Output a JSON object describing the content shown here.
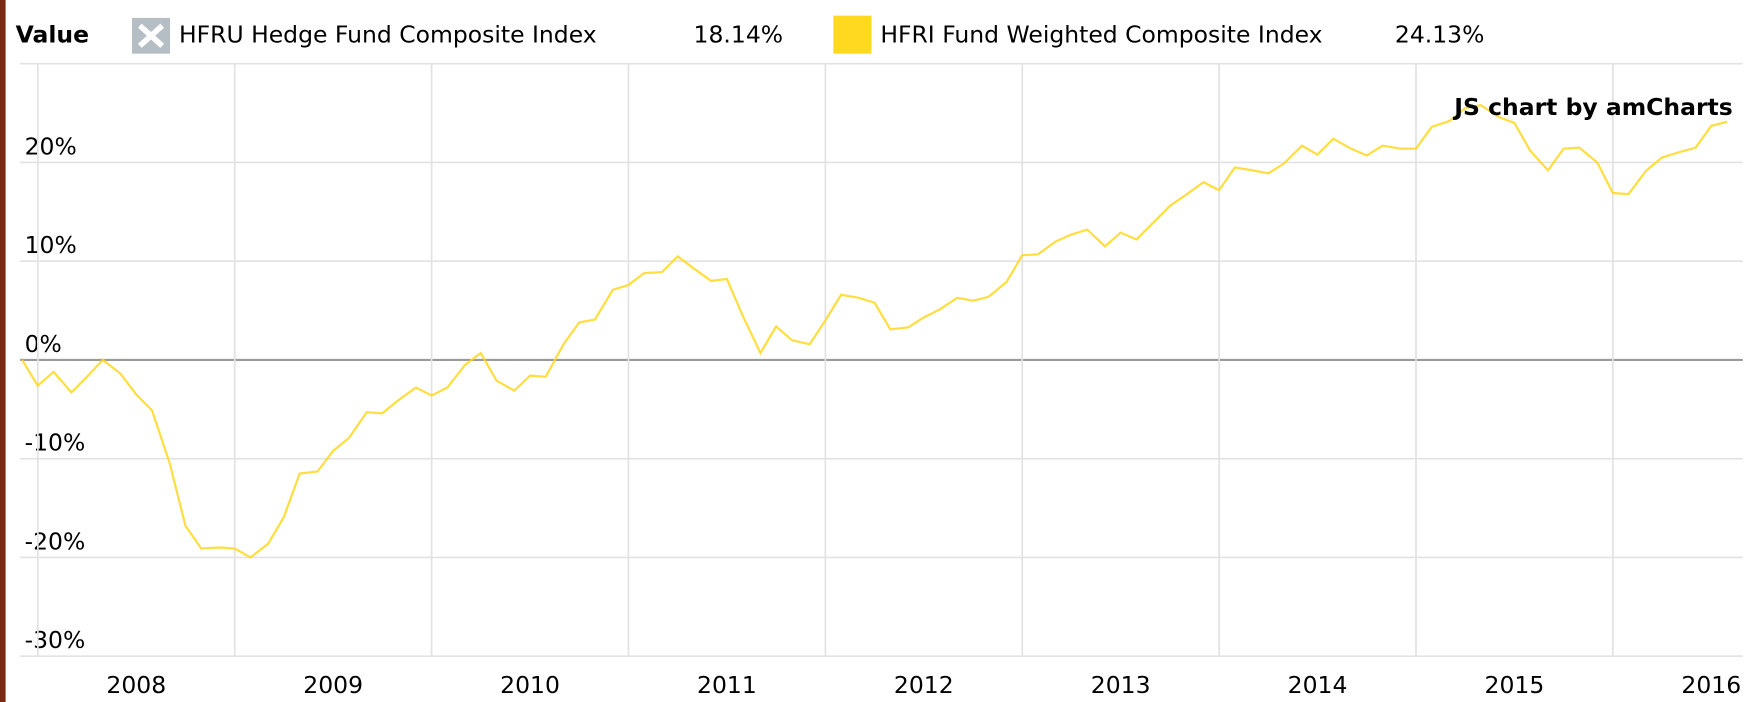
{
  "chart_data": {
    "type": "line",
    "legend_title": "Value",
    "credit": "JS chart by amCharts",
    "grid": true,
    "legend": "top-left",
    "series": [
      {
        "name": "HFRU Hedge Fund Composite Index",
        "hidden": true,
        "color": "#b4bec4",
        "legend_value": {
          "value": 18.14,
          "label": "18.14%"
        }
      },
      {
        "name": "HFRI Fund Weighted Composite Index",
        "color": "#ffd820",
        "legend_value": {
          "value": 24.13,
          "label": "24.13%"
        },
        "values": [
          0,
          -2.6,
          -1.2,
          -3.3,
          -1.7,
          0,
          -1.4,
          -3.5,
          -5.1,
          -10.5,
          -16.8,
          -19.1,
          -19.0,
          -19.1,
          -20.0,
          -18.6,
          -15.9,
          -11.5,
          -11.3,
          -9.2,
          -7.9,
          -5.3,
          -5.4,
          -4.1,
          -2.8,
          -3.6,
          -2.8,
          -0.5,
          0.7,
          -2.1,
          -3.1,
          -1.6,
          -1.7,
          1.6,
          3.8,
          4.1,
          7.1,
          7.6,
          8.8,
          8.9,
          10.5,
          9.3,
          8.0,
          8.2,
          4.5,
          0.7,
          3.4,
          2.0,
          1.6,
          4.0,
          6.6,
          6.3,
          5.8,
          3.1,
          3.3,
          4.3,
          5.1,
          6.3,
          6.0,
          6.4,
          7.9,
          10.6,
          10.7,
          12.0,
          12.7,
          13.2,
          11.5,
          12.9,
          12.2,
          14.0,
          15.6,
          16.7,
          18.0,
          17.2,
          19.5,
          19.2,
          18.9,
          19.9,
          21.7,
          20.8,
          22.4,
          21.4,
          20.7,
          21.7,
          21.4,
          21.4,
          23.6,
          24.2,
          25.5,
          25.8,
          24.6,
          24.0,
          21.2,
          19.2,
          21.4,
          21.5,
          20.0,
          16.9,
          16.8,
          19.2,
          20.5,
          21.0,
          21.5,
          23.7,
          24.13
        ]
      }
    ],
    "x": [
      2007.92,
      2008.0,
      2008.08,
      2008.17,
      2008.25,
      2008.33,
      2008.42,
      2008.5,
      2008.58,
      2008.67,
      2008.75,
      2008.83,
      2008.92,
      2009.0,
      2009.08,
      2009.17,
      2009.25,
      2009.33,
      2009.42,
      2009.5,
      2009.58,
      2009.67,
      2009.75,
      2009.83,
      2009.92,
      2010.0,
      2010.08,
      2010.17,
      2010.25,
      2010.33,
      2010.42,
      2010.5,
      2010.58,
      2010.67,
      2010.75,
      2010.83,
      2010.92,
      2011.0,
      2011.08,
      2011.17,
      2011.25,
      2011.33,
      2011.42,
      2011.5,
      2011.58,
      2011.67,
      2011.75,
      2011.83,
      2011.92,
      2012.0,
      2012.08,
      2012.17,
      2012.25,
      2012.33,
      2012.42,
      2012.5,
      2012.58,
      2012.67,
      2012.75,
      2012.83,
      2012.92,
      2013.0,
      2013.08,
      2013.17,
      2013.25,
      2013.33,
      2013.42,
      2013.5,
      2013.58,
      2013.67,
      2013.75,
      2013.83,
      2013.92,
      2014.0,
      2014.08,
      2014.17,
      2014.25,
      2014.33,
      2014.42,
      2014.5,
      2014.58,
      2014.67,
      2014.75,
      2014.83,
      2014.92,
      2015.0,
      2015.08,
      2015.17,
      2015.25,
      2015.33,
      2015.42,
      2015.5,
      2015.58,
      2015.67,
      2015.75,
      2015.83,
      2015.92,
      2016.0,
      2016.08,
      2016.17,
      2016.25,
      2016.33,
      2016.42,
      2016.5,
      2016.58
    ],
    "xlim": [
      2007.91,
      2016.66
    ],
    "xticks": [
      2008,
      2009,
      2010,
      2011,
      2012,
      2013,
      2014,
      2015,
      2016
    ],
    "ylim": [
      -30,
      30
    ],
    "yticks": [
      {
        "value": -30,
        "label": "-30%"
      },
      {
        "value": -20,
        "label": "-20%"
      },
      {
        "value": -10,
        "label": "-10%"
      },
      {
        "value": 0,
        "label": "0%"
      },
      {
        "value": 10,
        "label": "10%"
      },
      {
        "value": 20,
        "label": "20%"
      }
    ]
  }
}
